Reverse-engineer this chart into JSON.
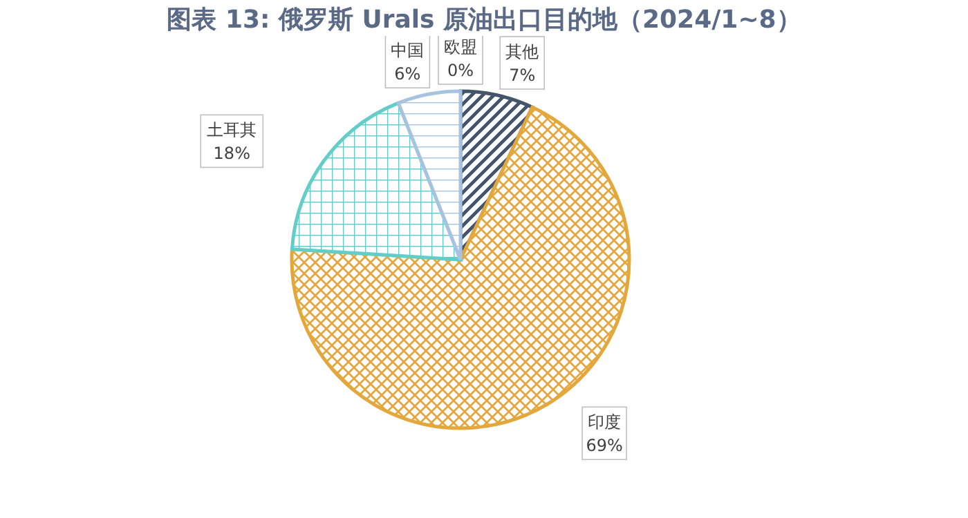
{
  "chart_data": {
    "type": "pie",
    "title": "图表 13: 俄罗斯 Urals 原油出口目的地（2024/1~8）",
    "categories": [
      "其他",
      "印度",
      "土耳其",
      "中国",
      "欧盟"
    ],
    "values": [
      7,
      69,
      18,
      6,
      0
    ],
    "colors": [
      "#44546a",
      "#e3a73c",
      "#62cdc9",
      "#a8c3e0",
      "#8fa9c9"
    ],
    "value_labels": [
      "7%",
      "69%",
      "18%",
      "6%",
      "0%"
    ]
  }
}
